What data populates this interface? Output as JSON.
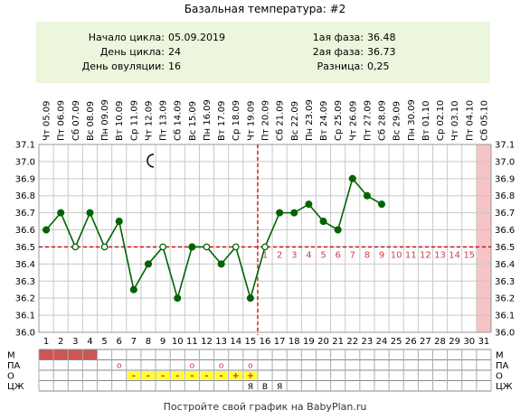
{
  "header": {
    "title": "Базальная температура: #2"
  },
  "info": {
    "cycle_start_label": "Начало цикла:",
    "cycle_start_value": "05.09.2019",
    "cycle_day_label": "День цикла:",
    "cycle_day_value": "24",
    "ovulation_day_label": "День овуляции:",
    "ovulation_day_value": "16",
    "phase1_label": "1ая фаза:",
    "phase1_value": "36.48",
    "phase2_label": "2ая фаза:",
    "phase2_value": "36.73",
    "difference_label": "Разница:",
    "difference_value": "0,25"
  },
  "footer": {
    "text": "Постройте свой график на BabyPlan.ru"
  },
  "colors": {
    "line": "#006400",
    "point": "#006400",
    "point_open": "#ffffff",
    "grid": "#c8c8c8",
    "coverline": "#cc0000",
    "menstruation": "#cc5555",
    "highlight_column": "#f6c4c4",
    "secretion": "#ffff33",
    "luteal_number": "#cc4444",
    "moon": "#000000"
  },
  "chart_data": {
    "type": "line",
    "title": "",
    "xlabel": "",
    "ylabel": "",
    "ylim": [
      36.0,
      37.1
    ],
    "y_ticks": [
      "36.0",
      "36.1",
      "36.2",
      "36.3",
      "36.4",
      "36.5",
      "36.6",
      "36.7",
      "36.8",
      "36.9",
      "37.0",
      "37.1"
    ],
    "dates": [
      "Чт 05.09",
      "Пт 06.09",
      "Сб 07.09",
      "Вс 08.09",
      "Пн 09.09",
      "Вт 10.09",
      "Ср 11.09",
      "Чт 12.09",
      "Пт 13.09",
      "Сб 14.09",
      "Вс 15.09",
      "Пн 16.09",
      "Вт 17.09",
      "Ср 18.09",
      "Чт 19.09",
      "Пт 20.09",
      "Сб 21.09",
      "Вс 22.09",
      "Пн 23.09",
      "Вт 24.09",
      "Ср 25.09",
      "Чт 26.09",
      "Пт 27.09",
      "Сб 28.09",
      "Вс 29.09",
      "Пн 30.09",
      "Вт 01.10",
      "Ср 02.10",
      "Чт 03.10",
      "Пт 04.10",
      "Сб 05.10"
    ],
    "cycle_days": [
      "1",
      "2",
      "3",
      "4",
      "5",
      "6",
      "7",
      "8",
      "9",
      "10",
      "11",
      "12",
      "13",
      "14",
      "15",
      "16",
      "17",
      "18",
      "19",
      "20",
      "21",
      "22",
      "23",
      "24",
      "25",
      "26",
      "27",
      "28",
      "29",
      "30",
      "31"
    ],
    "temperatures": [
      36.6,
      36.7,
      36.5,
      36.7,
      36.5,
      36.65,
      36.25,
      36.4,
      36.5,
      36.2,
      36.5,
      36.5,
      36.4,
      36.5,
      36.2,
      36.5,
      36.7,
      36.7,
      36.75,
      36.65,
      36.6,
      36.9,
      36.8,
      36.75
    ],
    "open_points_days": [
      3,
      5,
      9,
      12,
      14,
      16
    ],
    "coverline": 36.5,
    "ovulation_day": 16,
    "luteal_numbers": [
      "1",
      "2",
      "3",
      "4",
      "5",
      "6",
      "7",
      "8",
      "9",
      "10",
      "11",
      "12",
      "13",
      "14",
      "15"
    ],
    "highlight_day": 31,
    "moon_day": 8,
    "rows": {
      "labels": [
        "М",
        "ПА",
        "О",
        "ЦЖ"
      ],
      "menstruation_days": [
        1,
        2,
        3,
        4
      ],
      "pa_marks": [
        {
          "day": 6,
          "symbol": "o"
        },
        {
          "day": 11,
          "symbol": "o"
        },
        {
          "day": 13,
          "symbol": "o"
        },
        {
          "day": 15,
          "symbol": "o"
        }
      ],
      "o_marks": [
        {
          "day": 7,
          "symbol": "-"
        },
        {
          "day": 8,
          "symbol": "-"
        },
        {
          "day": 9,
          "symbol": "-"
        },
        {
          "day": 10,
          "symbol": "-"
        },
        {
          "day": 11,
          "symbol": "-"
        },
        {
          "day": 12,
          "symbol": "-"
        },
        {
          "day": 13,
          "symbol": "-"
        },
        {
          "day": 14,
          "symbol": "+"
        },
        {
          "day": 15,
          "symbol": "+"
        }
      ],
      "cz_marks": [
        {
          "day": 15,
          "symbol": "Я"
        },
        {
          "day": 16,
          "symbol": "В"
        },
        {
          "day": 17,
          "symbol": "Я"
        }
      ]
    }
  }
}
